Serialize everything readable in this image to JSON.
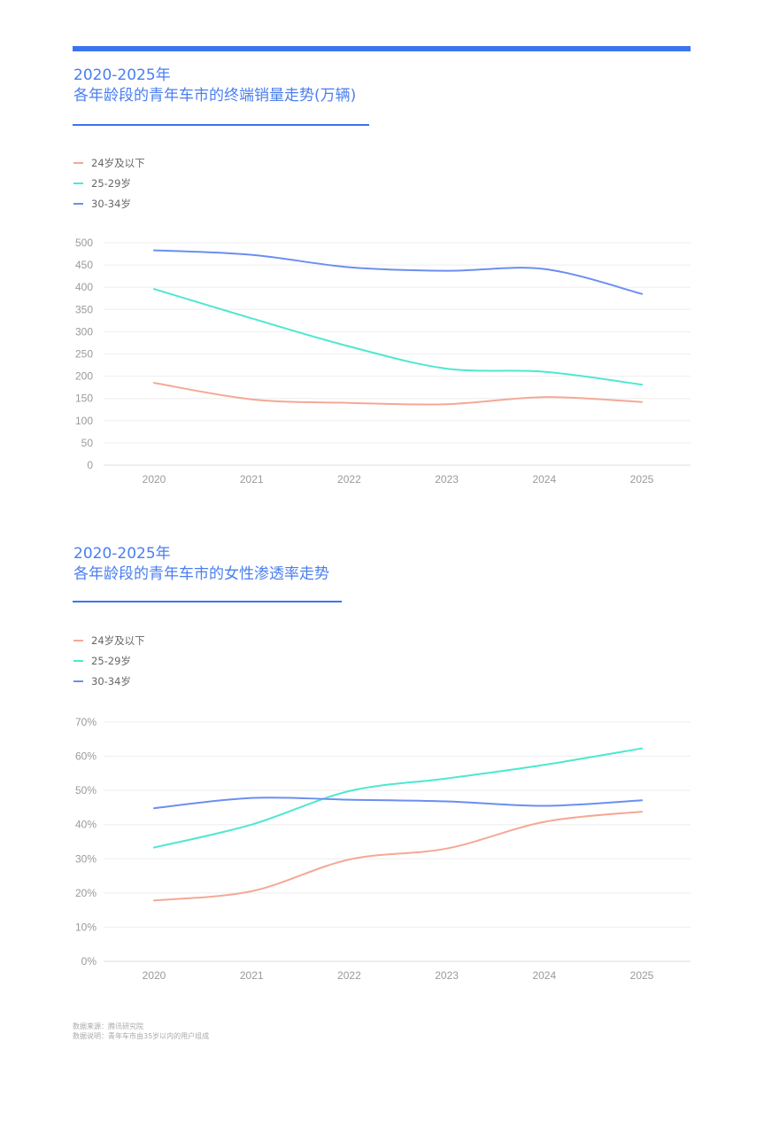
{
  "footnotes": {
    "source": "数据来源：腾讯研究院",
    "note": "数据说明：青年车市由35岁以内的用户组成"
  },
  "chart_data": [
    {
      "type": "line",
      "title": "2020-2025年",
      "subtitle": "各年龄段的青年车市的终端销量走势(万辆)",
      "categories": [
        "2020",
        "2021",
        "2022",
        "2023",
        "2024",
        "2025"
      ],
      "ylim": [
        0,
        500
      ],
      "yticks": [
        0,
        50,
        100,
        150,
        200,
        250,
        300,
        350,
        400,
        450,
        500
      ],
      "ytick_labels": [
        "0",
        "50",
        "100",
        "150",
        "200",
        "250",
        "300",
        "350",
        "400",
        "450",
        "500"
      ],
      "grid": true,
      "legend_position": "top-left",
      "series": [
        {
          "name": "24岁及以下",
          "color": "#f5a896",
          "values": [
            185,
            148,
            140,
            137,
            153,
            142
          ]
        },
        {
          "name": "25-29岁",
          "color": "#4de8cf",
          "values": [
            396,
            330,
            267,
            217,
            210,
            181
          ]
        },
        {
          "name": "30-34岁",
          "color": "#6b8ff0",
          "values": [
            483,
            473,
            445,
            437,
            441,
            385
          ]
        }
      ]
    },
    {
      "type": "line",
      "title": "2020-2025年",
      "subtitle": "各年龄段的青年车市的女性渗透率走势",
      "categories": [
        "2020",
        "2021",
        "2022",
        "2023",
        "2024",
        "2025"
      ],
      "ylim": [
        0,
        70
      ],
      "yticks": [
        0,
        10,
        20,
        30,
        40,
        50,
        60,
        70
      ],
      "ytick_labels": [
        "0%",
        "10%",
        "20%",
        "30%",
        "40%",
        "50%",
        "60%",
        "70%"
      ],
      "grid": true,
      "legend_position": "top-left",
      "series": [
        {
          "name": "24岁及以下",
          "color": "#f5a896",
          "values": [
            17.8,
            20.5,
            29.8,
            33.0,
            40.8,
            43.8
          ]
        },
        {
          "name": "25-29岁",
          "color": "#4de8cf",
          "values": [
            33.3,
            40.0,
            49.8,
            53.5,
            57.5,
            62.3
          ]
        },
        {
          "name": "30-34岁",
          "color": "#6b8ff0",
          "values": [
            44.8,
            47.8,
            47.3,
            46.8,
            45.5,
            47.1
          ]
        }
      ]
    }
  ]
}
